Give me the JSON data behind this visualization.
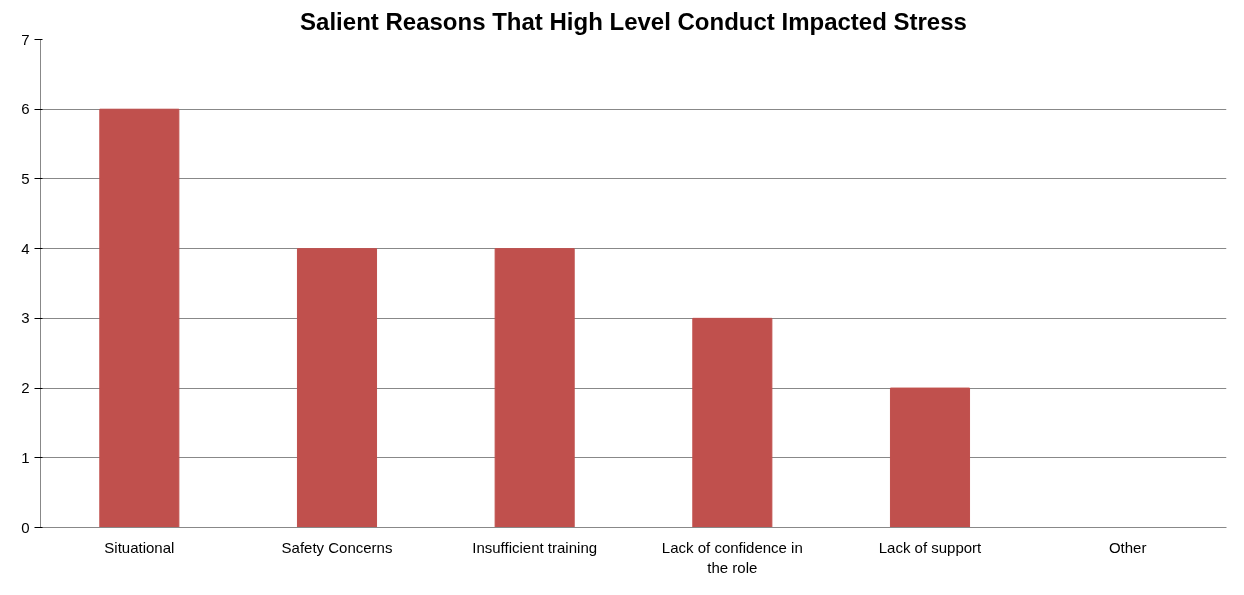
{
  "chart_data": {
    "type": "bar",
    "title": "Salient Reasons That High Level Conduct Impacted Stress",
    "categories": [
      "Situational",
      "Safety Concerns",
      "Insufficient training",
      "Lack of confidence in the role",
      "Lack of support",
      "Other"
    ],
    "values": [
      6,
      4,
      4,
      3,
      2,
      0
    ],
    "color": "#c0504d",
    "ylim": [
      0,
      7
    ],
    "yticks": [
      0,
      1,
      2,
      3,
      4,
      5,
      6,
      7
    ],
    "grid": "y"
  }
}
